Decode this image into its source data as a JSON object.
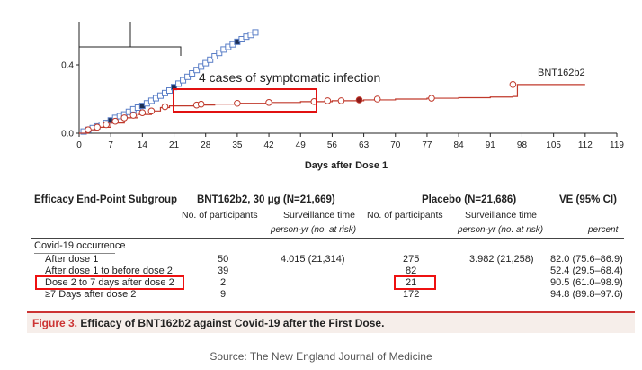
{
  "chart_data": {
    "type": "line",
    "xlabel": "Days after Dose 1",
    "ylabel": "",
    "xlim": [
      0,
      119
    ],
    "ylim": [
      0,
      0.6
    ],
    "x_ticks": [
      0,
      7,
      14,
      21,
      28,
      35,
      42,
      49,
      56,
      63,
      70,
      77,
      84,
      91,
      98,
      105,
      112,
      119
    ],
    "y_ticks": [
      0.0,
      0.4
    ],
    "y_tick_labels": [
      "0.0",
      "0.4"
    ],
    "series": [
      {
        "name": "Placebo",
        "marker": "square",
        "color": "#5b7fc7",
        "points": [
          [
            1,
            0.01
          ],
          [
            2,
            0.02
          ],
          [
            3,
            0.03
          ],
          [
            4,
            0.04
          ],
          [
            5,
            0.05
          ],
          [
            6,
            0.06
          ],
          [
            7,
            0.075
          ],
          [
            8,
            0.09
          ],
          [
            9,
            0.1
          ],
          [
            10,
            0.11
          ],
          [
            11,
            0.125
          ],
          [
            12,
            0.14
          ],
          [
            13,
            0.15
          ],
          [
            14,
            0.16
          ],
          [
            15,
            0.175
          ],
          [
            16,
            0.19
          ],
          [
            17,
            0.205
          ],
          [
            18,
            0.22
          ],
          [
            19,
            0.235
          ],
          [
            20,
            0.25
          ],
          [
            21,
            0.27
          ],
          [
            22,
            0.29
          ],
          [
            23,
            0.31
          ],
          [
            24,
            0.33
          ],
          [
            25,
            0.35
          ],
          [
            26,
            0.37
          ],
          [
            27,
            0.39
          ],
          [
            28,
            0.41
          ],
          [
            29,
            0.43
          ],
          [
            30,
            0.45
          ],
          [
            31,
            0.47
          ],
          [
            32,
            0.49
          ],
          [
            33,
            0.505
          ],
          [
            34,
            0.52
          ],
          [
            35,
            0.535
          ],
          [
            36,
            0.55
          ],
          [
            37,
            0.565
          ],
          [
            38,
            0.575
          ],
          [
            39,
            0.59
          ]
        ]
      },
      {
        "name": "BNT162b2",
        "marker": "circle",
        "color": "#c0392b",
        "points": [
          [
            0,
            0
          ],
          [
            2,
            0.02
          ],
          [
            4,
            0.035
          ],
          [
            7,
            0.06
          ],
          [
            10,
            0.09
          ],
          [
            13,
            0.11
          ],
          [
            16,
            0.13
          ],
          [
            18,
            0.15
          ],
          [
            20,
            0.16
          ],
          [
            26,
            0.165
          ],
          [
            30,
            0.17
          ],
          [
            35,
            0.175
          ],
          [
            42,
            0.18
          ],
          [
            49,
            0.185
          ],
          [
            56,
            0.19
          ],
          [
            63,
            0.195
          ],
          [
            70,
            0.2
          ],
          [
            77,
            0.205
          ],
          [
            84,
            0.208
          ],
          [
            91,
            0.212
          ],
          [
            96,
            0.215
          ],
          [
            97,
            0.285
          ],
          [
            112,
            0.285
          ]
        ],
        "markers": [
          [
            2,
            0.02
          ],
          [
            4,
            0.035
          ],
          [
            6,
            0.05
          ],
          [
            8,
            0.07
          ],
          [
            10,
            0.09
          ],
          [
            12,
            0.105
          ],
          [
            14,
            0.12
          ],
          [
            16,
            0.13
          ],
          [
            19,
            0.155
          ],
          [
            26,
            0.165
          ],
          [
            27,
            0.17
          ],
          [
            35,
            0.175
          ],
          [
            42,
            0.18
          ],
          [
            52,
            0.185
          ],
          [
            55,
            0.19
          ],
          [
            58,
            0.19
          ],
          [
            62,
            0.195
          ],
          [
            66,
            0.2
          ],
          [
            78,
            0.205
          ],
          [
            96,
            0.285
          ]
        ],
        "filled_markers": [
          [
            62,
            0.195
          ]
        ]
      }
    ],
    "series_label": "BNT162b2",
    "annotation": "4 cases of symptomatic infection"
  },
  "table": {
    "header": {
      "subgroup": "Efficacy End-Point Subgroup",
      "bnt": "BNT162b2, 30 μg (N=21,669)",
      "placebo": "Placebo (N=21,686)",
      "ve": "VE (95% CI)"
    },
    "subheader": {
      "participants_a": "No. of participants",
      "surveillance_a": "Surveillance time",
      "participants_b": "No. of participants",
      "surveillance_b": "Surveillance time"
    },
    "units": {
      "py_a": "person-yr (no. at risk)",
      "py_b": "person-yr (no. at risk)",
      "percent": "percent"
    },
    "section": "Covid-19 occurrence",
    "rows": [
      {
        "label": "After dose 1",
        "bnt_n": "50",
        "bnt_time": "4.015 (21,314)",
        "pla_n": "275",
        "pla_time": "3.982 (21,258)",
        "ve": "82.0 (75.6–86.9)"
      },
      {
        "label": "After dose 1 to before dose 2",
        "bnt_n": "39",
        "bnt_time": "",
        "pla_n": "82",
        "pla_time": "",
        "ve": "52.4 (29.5–68.4)"
      },
      {
        "label": "Dose 2 to 7 days after dose 2",
        "bnt_n": "2",
        "bnt_time": "",
        "pla_n": "21",
        "pla_time": "",
        "ve": "90.5 (61.0–98.9)"
      },
      {
        "label": "≥7 Days after dose 2",
        "bnt_n": "9",
        "bnt_time": "",
        "pla_n": "172",
        "pla_time": "",
        "ve": "94.8 (89.8–97.6)"
      }
    ]
  },
  "caption": {
    "fig": "Figure 3.",
    "text": " Efficacy of BNT162b2 against Covid-19 after the First Dose."
  },
  "source": "Source: The New England Journal of Medicine",
  "colors": {
    "highlight": "#e11111",
    "caption_bg": "#f6eeea",
    "figure_label": "#cc3333"
  }
}
